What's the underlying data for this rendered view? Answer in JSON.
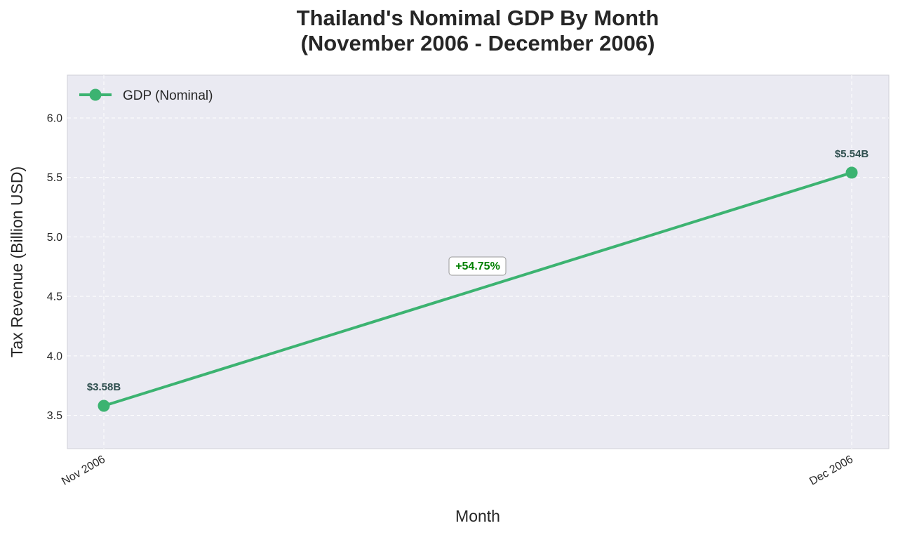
{
  "chart_data": {
    "type": "line",
    "title_line1": "Thailand's Nomimal GDP By Month",
    "title_line2": "(November 2006 - December 2006)",
    "xlabel": "Month",
    "ylabel": "Tax Revenue (Billion USD)",
    "categories": [
      "Nov 2006",
      "Dec 2006"
    ],
    "series": [
      {
        "name": "GDP (Nominal)",
        "values": [
          3.58,
          5.54
        ],
        "color": "#3cb371"
      }
    ],
    "data_labels": [
      "$3.58B",
      "$5.54B"
    ],
    "annotation": "+54.75%",
    "annotation_color": "#008000",
    "ylim": [
      3.22,
      6.36
    ],
    "yticks": [
      3.5,
      4.0,
      4.5,
      5.0,
      5.5,
      6.0
    ],
    "ytick_labels": [
      "3.5",
      "4.0",
      "4.5",
      "5.0",
      "5.5",
      "6.0"
    ],
    "grid": true,
    "legend_position": "top-left",
    "plot_background": "#eaeaf2"
  }
}
